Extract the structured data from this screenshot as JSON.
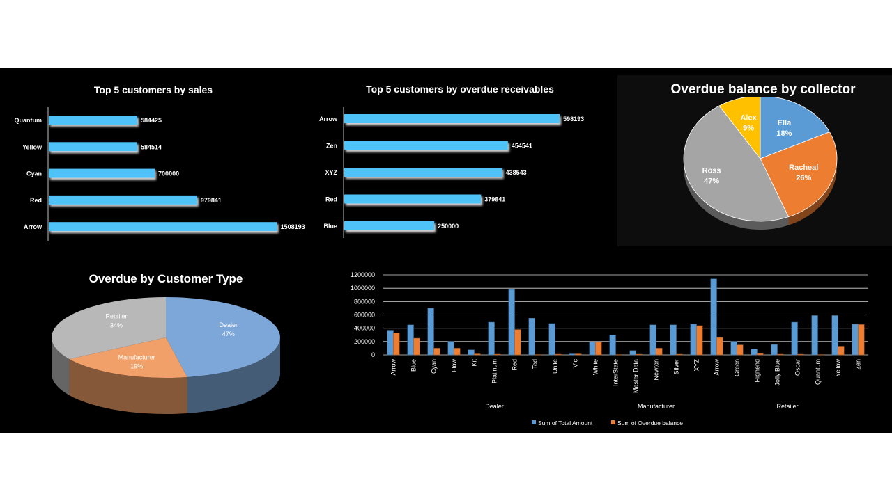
{
  "chart_data": [
    {
      "id": "top-sales",
      "type": "bar",
      "orientation": "horizontal",
      "title": "Top 5 customers by sales",
      "categories": [
        "Quantum",
        "Yellow",
        "Cyan",
        "Red",
        "Arrow"
      ],
      "values": [
        584425,
        584514,
        700000,
        979841,
        1508193
      ],
      "value_labels": [
        "584425",
        "584514",
        "700000",
        "979841",
        "1508193"
      ],
      "xlim": [
        0,
        1510000
      ],
      "color": "#4fc3f7"
    },
    {
      "id": "top-overdue",
      "type": "bar",
      "orientation": "horizontal",
      "title": "Top 5 customers by overdue receivables",
      "categories": [
        "Arrow",
        "Zen",
        "XYZ",
        "Red",
        "Blue"
      ],
      "values": [
        598193,
        454541,
        438543,
        379841,
        250000
      ],
      "value_labels": [
        "598193",
        "454541",
        "438543",
        "379841",
        "250000"
      ],
      "xlim": [
        0,
        600000
      ],
      "color": "#4fc3f7"
    },
    {
      "id": "collector-pie",
      "type": "pie",
      "title": "Overdue balance by collector",
      "slices": [
        {
          "name": "Ella",
          "value": 18,
          "label": "Ella",
          "pct": "18%",
          "color": "#5b9bd5"
        },
        {
          "name": "Racheal",
          "value": 26,
          "label": "Racheal",
          "pct": "26%",
          "color": "#ed7d31"
        },
        {
          "name": "Ross",
          "value": 47,
          "label": "Ross",
          "pct": "47%",
          "color": "#a5a5a5"
        },
        {
          "name": "Alex",
          "value": 9,
          "label": "Alex",
          "pct": "9%",
          "color": "#ffc000"
        }
      ]
    },
    {
      "id": "customer-type-pie",
      "type": "pie",
      "title": "Overdue by Customer Type",
      "slices": [
        {
          "name": "Dealer",
          "value": 47,
          "label": "Dealer",
          "pct": "47%",
          "color": "#7da7d9"
        },
        {
          "name": "Manufacturer",
          "value": 19,
          "label": "Manufacturer",
          "pct": "19%",
          "color": "#f0a068"
        },
        {
          "name": "Retailer",
          "value": 34,
          "label": "Retailer",
          "pct": "34%",
          "color": "#b8b8b8"
        }
      ]
    },
    {
      "id": "amount-vs-overdue",
      "type": "bar",
      "title": "",
      "ylim": [
        0,
        1200000
      ],
      "yticks": [
        "0",
        "200000",
        "400000",
        "600000",
        "800000",
        "1000000",
        "1200000"
      ],
      "ytick_values": [
        0,
        200000,
        400000,
        600000,
        800000,
        1000000,
        1200000
      ],
      "categories": [
        "Arrow",
        "Blue",
        "Cyan",
        "Flow",
        "Kit",
        "Platinum",
        "Red",
        "Ted",
        "Unite",
        "Vic",
        "White",
        "InterState",
        "Master Data",
        "Newton",
        "Silver",
        "XYZ",
        "Arrow",
        "Green",
        "Highend",
        "Jolly Blue",
        "Oscar",
        "Quantum",
        "Yellow",
        "Zen"
      ],
      "groups": [
        {
          "name": "Dealer",
          "count": 11
        },
        {
          "name": "Manufacturer",
          "count": 5
        },
        {
          "name": "Retailer",
          "count": 8
        }
      ],
      "series": [
        {
          "name": "Sum of Total Amount",
          "color": "#5b9bd5",
          "values": [
            370000,
            450000,
            700000,
            200000,
            75000,
            490000,
            980000,
            550000,
            470000,
            15000,
            190000,
            300000,
            65000,
            450000,
            450000,
            460000,
            1140000,
            200000,
            90000,
            155000,
            490000,
            590000,
            590000,
            460000
          ]
        },
        {
          "name": "Sum of Overdue balance",
          "color": "#ed7d31",
          "values": [
            330000,
            250000,
            100000,
            100000,
            15000,
            10000,
            380000,
            5000,
            10000,
            15000,
            190000,
            5000,
            10000,
            100000,
            10000,
            438543,
            260000,
            150000,
            20000,
            10000,
            10000,
            5000,
            130000,
            454541
          ]
        }
      ]
    }
  ]
}
